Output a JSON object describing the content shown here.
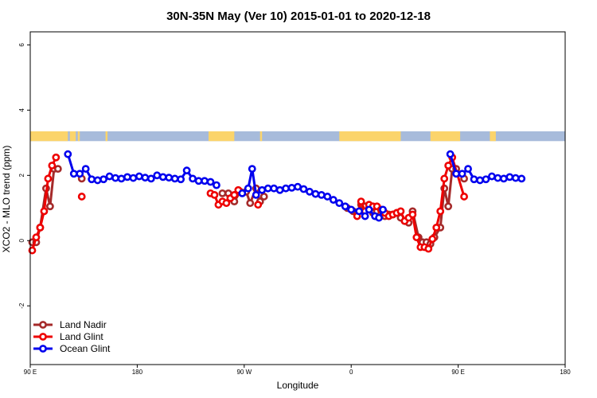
{
  "chart_data": {
    "type": "line",
    "title": "30N-35N May (Ver 10)   2015-01-01 to 2020-12-18",
    "xlabel": "Longitude",
    "ylabel": "XCO2 - MLO trend (ppm)",
    "xlim": [
      -90,
      180
    ],
    "ylim": [
      -3.8,
      6.4
    ],
    "x_ticks": [
      {
        "value": -90,
        "label": "90 E"
      },
      {
        "value": -36,
        "label": "180"
      },
      {
        "value": 18,
        "label": "90 W"
      },
      {
        "value": 72,
        "label": "0"
      },
      {
        "value": 126,
        "label": "90 E"
      },
      {
        "value": 180,
        "label": "180"
      }
    ],
    "y_ticks": [
      {
        "value": -2,
        "label": "-2"
      },
      {
        "value": 0,
        "label": "0"
      },
      {
        "value": 2,
        "label": "2"
      },
      {
        "value": 4,
        "label": "4"
      },
      {
        "value": 6,
        "label": "6"
      }
    ],
    "grid": false,
    "legend_position": "bottom-left",
    "land_ocean_band": {
      "y_range": [
        3.05,
        3.35
      ],
      "land_color": "#fbd46b",
      "ocean_color": "#a7bbdb",
      "land_spans": [
        [
          -90,
          -71
        ],
        [
          -70,
          -67
        ],
        [
          -66,
          -65
        ],
        [
          -52,
          -51
        ],
        [
          0,
          13
        ],
        [
          26,
          27
        ],
        [
          66,
          97
        ],
        [
          112,
          127
        ],
        [
          142,
          145
        ]
      ]
    },
    "series": [
      {
        "name": "Land Nadir",
        "color": "#a52a2a",
        "points": [
          [
            -89,
            -0.05
          ],
          [
            -87,
            -0.05
          ],
          [
            -85,
            0.4
          ],
          [
            -82,
            1.6
          ],
          [
            -80,
            1.05
          ],
          [
            -78,
            2.2
          ],
          [
            -76,
            2.2
          ],
          [
            -64,
            1.9
          ],
          [
            7,
            1.45
          ],
          [
            10,
            1.45
          ],
          [
            13,
            1.2
          ],
          [
            16,
            1.5
          ],
          [
            19,
            1.5
          ],
          [
            21,
            1.15
          ],
          [
            24,
            1.6
          ],
          [
            26,
            1.2
          ],
          [
            28,
            1.35
          ],
          [
            70,
            1.0
          ],
          [
            73,
            0.9
          ],
          [
            75,
            0.85
          ],
          [
            77,
            1.1
          ],
          [
            79,
            1.05
          ],
          [
            81,
            1.0
          ],
          [
            83,
            0.85
          ],
          [
            85,
            0.9
          ],
          [
            87,
            0.8
          ],
          [
            89,
            0.75
          ],
          [
            91,
            0.8
          ],
          [
            93,
            0.8
          ],
          [
            95,
            0.85
          ],
          [
            97,
            0.7
          ],
          [
            99,
            0.6
          ],
          [
            101,
            0.55
          ],
          [
            103,
            0.9
          ],
          [
            106,
            0.1
          ],
          [
            108,
            -0.05
          ],
          [
            110,
            -0.05
          ],
          [
            112,
            -0.1
          ],
          [
            114,
            0.1
          ],
          [
            117,
            0.4
          ],
          [
            119,
            1.6
          ],
          [
            121,
            1.05
          ],
          [
            123,
            2.2
          ],
          [
            125,
            2.2
          ],
          [
            129,
            1.9
          ]
        ]
      },
      {
        "name": "Land Glint",
        "color": "#ee0000",
        "points": [
          [
            -89,
            -0.3
          ],
          [
            -87,
            0.1
          ],
          [
            -85,
            0.4
          ],
          [
            -83,
            0.9
          ],
          [
            -81,
            1.9
          ],
          [
            -79,
            2.3
          ],
          [
            -77,
            2.55
          ],
          [
            -64,
            1.35
          ],
          [
            1,
            1.45
          ],
          [
            3,
            1.4
          ],
          [
            5,
            1.1
          ],
          [
            7,
            1.2
          ],
          [
            9,
            1.15
          ],
          [
            11,
            1.3
          ],
          [
            13,
            1.4
          ],
          [
            15,
            1.55
          ],
          [
            25,
            1.1
          ],
          [
            75,
            0.75
          ],
          [
            77,
            1.2
          ],
          [
            79,
            0.9
          ],
          [
            81,
            1.1
          ],
          [
            83,
            1.05
          ],
          [
            85,
            1.05
          ],
          [
            87,
            0.95
          ],
          [
            89,
            0.85
          ],
          [
            91,
            0.75
          ],
          [
            93,
            0.8
          ],
          [
            95,
            0.85
          ],
          [
            97,
            0.9
          ],
          [
            99,
            0.6
          ],
          [
            101,
            0.7
          ],
          [
            103,
            0.8
          ],
          [
            105,
            0.1
          ],
          [
            107,
            -0.2
          ],
          [
            109,
            -0.2
          ],
          [
            111,
            -0.25
          ],
          [
            113,
            0.05
          ],
          [
            115,
            0.4
          ],
          [
            117,
            0.9
          ],
          [
            119,
            1.9
          ],
          [
            121,
            2.3
          ],
          [
            123,
            2.55
          ],
          [
            129,
            1.35
          ]
        ]
      },
      {
        "name": "Ocean Glint",
        "color": "#0000ee",
        "points": [
          [
            -71,
            2.65
          ],
          [
            -68,
            2.05
          ],
          [
            -65,
            2.05
          ],
          [
            -62,
            2.2
          ],
          [
            -59,
            1.88
          ],
          [
            -56,
            1.85
          ],
          [
            -53,
            1.88
          ],
          [
            -50,
            1.97
          ],
          [
            -47,
            1.92
          ],
          [
            -44,
            1.9
          ],
          [
            -41,
            1.95
          ],
          [
            -38,
            1.92
          ],
          [
            -35,
            1.97
          ],
          [
            -32,
            1.93
          ],
          [
            -29,
            1.9
          ],
          [
            -26,
            2.0
          ],
          [
            -23,
            1.95
          ],
          [
            -20,
            1.93
          ],
          [
            -17,
            1.9
          ],
          [
            -14,
            1.88
          ],
          [
            -11,
            2.15
          ],
          [
            -8,
            1.9
          ],
          [
            -5,
            1.83
          ],
          [
            -2,
            1.83
          ],
          [
            1,
            1.8
          ],
          [
            4,
            1.7
          ],
          [
            17,
            1.45
          ],
          [
            20,
            1.6
          ],
          [
            22,
            2.2
          ],
          [
            24,
            1.4
          ],
          [
            27,
            1.55
          ],
          [
            30,
            1.6
          ],
          [
            33,
            1.6
          ],
          [
            36,
            1.55
          ],
          [
            39,
            1.6
          ],
          [
            42,
            1.62
          ],
          [
            45,
            1.65
          ],
          [
            48,
            1.58
          ],
          [
            51,
            1.5
          ],
          [
            54,
            1.43
          ],
          [
            57,
            1.4
          ],
          [
            60,
            1.35
          ],
          [
            63,
            1.25
          ],
          [
            66,
            1.15
          ],
          [
            69,
            1.05
          ],
          [
            72,
            0.95
          ],
          [
            76,
            0.9
          ],
          [
            79,
            0.75
          ],
          [
            81,
            0.95
          ],
          [
            84,
            0.75
          ],
          [
            86,
            0.7
          ],
          [
            88,
            0.95
          ],
          [
            122,
            2.65
          ],
          [
            125,
            2.05
          ],
          [
            128,
            2.05
          ],
          [
            131,
            2.2
          ],
          [
            134,
            1.88
          ],
          [
            137,
            1.85
          ],
          [
            140,
            1.88
          ],
          [
            143,
            1.97
          ],
          [
            146,
            1.92
          ],
          [
            149,
            1.9
          ],
          [
            152,
            1.95
          ],
          [
            155,
            1.92
          ],
          [
            158,
            1.9
          ]
        ]
      }
    ]
  }
}
